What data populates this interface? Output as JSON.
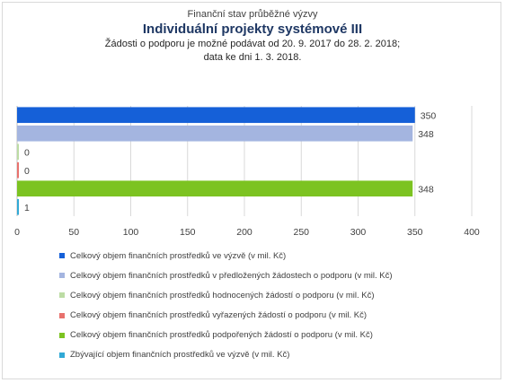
{
  "chart_data": {
    "type": "bar",
    "orientation": "horizontal",
    "suptitle": "Finanční stav průběžné výzvy",
    "title": "Individuální projekty systémové III",
    "subtitle_lines": [
      "Žádosti o podporu je možné  podávat od 20. 9. 2017 do 28. 2. 2018;",
      "data ke dni 1. 3. 2018."
    ],
    "xlim": [
      0,
      400
    ],
    "x_ticks": [
      0,
      50,
      100,
      150,
      200,
      250,
      300,
      350,
      400
    ],
    "grid": true,
    "legend_position": "bottom",
    "series": [
      {
        "name": "Celkový objem finančních prostředků ve výzvě (v mil. Kč)",
        "value": 350,
        "label": "350",
        "color": "#1560d8"
      },
      {
        "name": "Celkový objem finančních prostředků v předložených žádostech o podporu (v mil. Kč)",
        "value": 348,
        "label": "348",
        "color": "#a4b5e0"
      },
      {
        "name": "Celkový objem finančních prostředků hodnocených žádostí o podporu (v mil. Kč)",
        "value": 0,
        "label": "0",
        "color": "#bcdca4"
      },
      {
        "name": "Celkový objem finančních prostředků vyřazených žádostí o podporu (v mil. Kč)",
        "value": 0,
        "label": "0",
        "color": "#e8716d"
      },
      {
        "name": "Celkový objem finančních prostředků podpořených žádostí o podporu (v mil. Kč)",
        "value": 348,
        "label": "348",
        "color": "#7cc321"
      },
      {
        "name": "Zbývající objem finančních prostředků ve výzvě (v mil. Kč)",
        "value": 1,
        "label": "1",
        "color": "#31a9d6"
      }
    ]
  }
}
